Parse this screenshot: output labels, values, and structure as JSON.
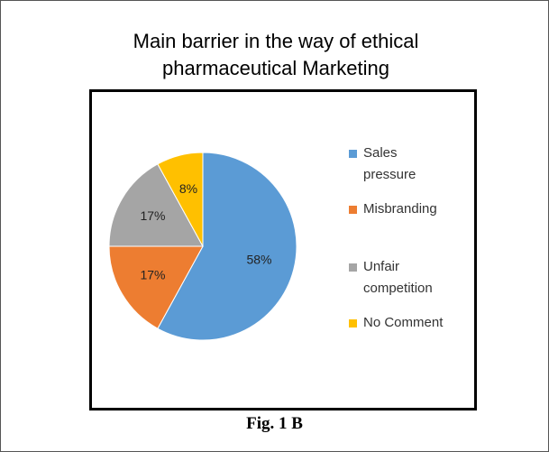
{
  "chart_data": {
    "type": "pie",
    "title": "Main barrier in the way of ethical pharmaceutical Marketing",
    "categories": [
      "Sales pressure",
      "Misbranding",
      "Unfair competition",
      "No Comment"
    ],
    "values": [
      58,
      17,
      17,
      8
    ],
    "value_labels": [
      "58%",
      "17%",
      "17%",
      "8%"
    ],
    "colors": [
      "#5b9bd5",
      "#ed7d31",
      "#a5a5a5",
      "#ffc000"
    ],
    "legend": "right",
    "caption": "Fig. 1 B"
  }
}
